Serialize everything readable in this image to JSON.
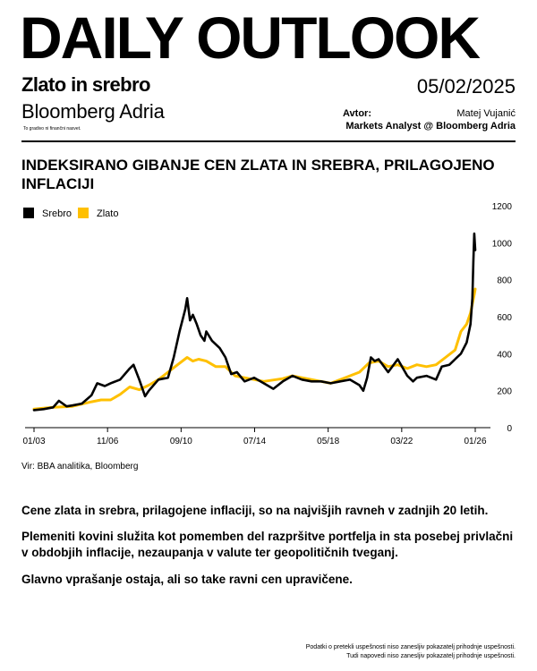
{
  "header": {
    "title": "DAILY OUTLOOK",
    "subtitle": "Zlato in srebro",
    "date": "05/02/2025",
    "brand": "Bloomberg Adria",
    "disclaimer": "To gradivo ni finančni nasvet.",
    "author_label": "Avtor:",
    "author_name": "Matej Vujanić",
    "author_role": "Markets Analyst @ Bloomberg Adria"
  },
  "colors": {
    "silver": "#000000",
    "gold": "#FFC000",
    "axis": "#000000"
  },
  "chart_data": {
    "type": "line",
    "title": "INDEKSIRANO GIBANJE CEN ZLATA IN SREBRA, PRILAGOJENO INFLACIJI",
    "xlabel": "",
    "ylabel": "",
    "x_tick_labels": [
      "01/03",
      "11/06",
      "09/10",
      "07/14",
      "05/18",
      "03/22",
      "01/26"
    ],
    "y_ticks": [
      0,
      200,
      400,
      600,
      800,
      1000,
      1200
    ],
    "ylim": [
      0,
      1200
    ],
    "legend_position": "top-left",
    "grid": false,
    "series": [
      {
        "name": "Srebro",
        "x": [
          2003.0,
          2003.5,
          2004.0,
          2004.3,
          2004.7,
          2005.0,
          2005.5,
          2006.0,
          2006.3,
          2006.7,
          2007.0,
          2007.5,
          2008.0,
          2008.2,
          2008.5,
          2008.8,
          2009.0,
          2009.5,
          2010.0,
          2010.3,
          2010.6,
          2010.9,
          2011.0,
          2011.15,
          2011.3,
          2011.5,
          2011.7,
          2011.9,
          2012.0,
          2012.3,
          2012.7,
          2013.0,
          2013.3,
          2013.6,
          2014.0,
          2014.5,
          2015.0,
          2015.5,
          2016.0,
          2016.5,
          2017.0,
          2017.5,
          2018.0,
          2018.5,
          2019.0,
          2019.5,
          2020.0,
          2020.2,
          2020.4,
          2020.6,
          2020.8,
          2021.0,
          2021.5,
          2022.0,
          2022.5,
          2022.8,
          2023.0,
          2023.5,
          2024.0,
          2024.3,
          2024.7,
          2025.0,
          2025.3,
          2025.6,
          2025.8,
          2025.9,
          2025.95,
          2026.0,
          2026.05
        ],
        "values": [
          95,
          100,
          110,
          145,
          115,
          120,
          130,
          175,
          240,
          225,
          240,
          260,
          320,
          340,
          260,
          170,
          200,
          260,
          270,
          380,
          520,
          640,
          700,
          580,
          610,
          560,
          500,
          470,
          520,
          470,
          430,
          380,
          290,
          300,
          250,
          270,
          240,
          210,
          250,
          280,
          260,
          250,
          250,
          240,
          250,
          260,
          230,
          200,
          270,
          380,
          360,
          370,
          300,
          370,
          280,
          250,
          270,
          280,
          260,
          330,
          340,
          370,
          400,
          460,
          560,
          700,
          900,
          1050,
          960
        ]
      },
      {
        "name": "Zlato",
        "x": [
          2003.0,
          2004.0,
          2005.0,
          2006.0,
          2006.5,
          2007.0,
          2007.5,
          2008.0,
          2008.5,
          2009.0,
          2009.5,
          2010.0,
          2010.5,
          2011.0,
          2011.3,
          2011.6,
          2012.0,
          2012.5,
          2013.0,
          2013.5,
          2014.0,
          2015.0,
          2016.0,
          2016.5,
          2017.0,
          2018.0,
          2018.5,
          2019.0,
          2019.5,
          2020.0,
          2020.5,
          2021.0,
          2021.5,
          2022.0,
          2022.5,
          2023.0,
          2023.5,
          2024.0,
          2024.5,
          2025.0,
          2025.3,
          2025.6,
          2025.8,
          2026.0,
          2026.05
        ],
        "values": [
          100,
          110,
          115,
          140,
          150,
          150,
          180,
          220,
          205,
          230,
          260,
          300,
          340,
          380,
          360,
          370,
          360,
          330,
          330,
          280,
          270,
          250,
          265,
          280,
          270,
          250,
          240,
          260,
          280,
          300,
          350,
          360,
          330,
          340,
          320,
          340,
          330,
          340,
          380,
          420,
          520,
          560,
          620,
          720,
          750
        ]
      }
    ]
  },
  "source": "Vir: BBA analitika, Bloomberg",
  "body": {
    "p1": "Cene zlata in srebra, prilagojene inflaciji, so na najvišjih ravneh v zadnjih 20 letih.",
    "p2": "Plemeniti kovini služita kot pomemben del razpršitve portfelja in sta posebej privlačni v obdobjih inflacije, nezaupanja v valute ter geopolitičnih tveganj.",
    "p3": "Glavno vprašanje ostaja, ali so take ravni cen upravičene."
  },
  "footer": {
    "line1": "Podatki o pretekli uspešnosti niso zanesljiv pokazatelj prihodnje uspešnosti.",
    "line2": "Tudi napovedi niso zanesljiv pokazatelj prihodnje uspešnosti."
  }
}
